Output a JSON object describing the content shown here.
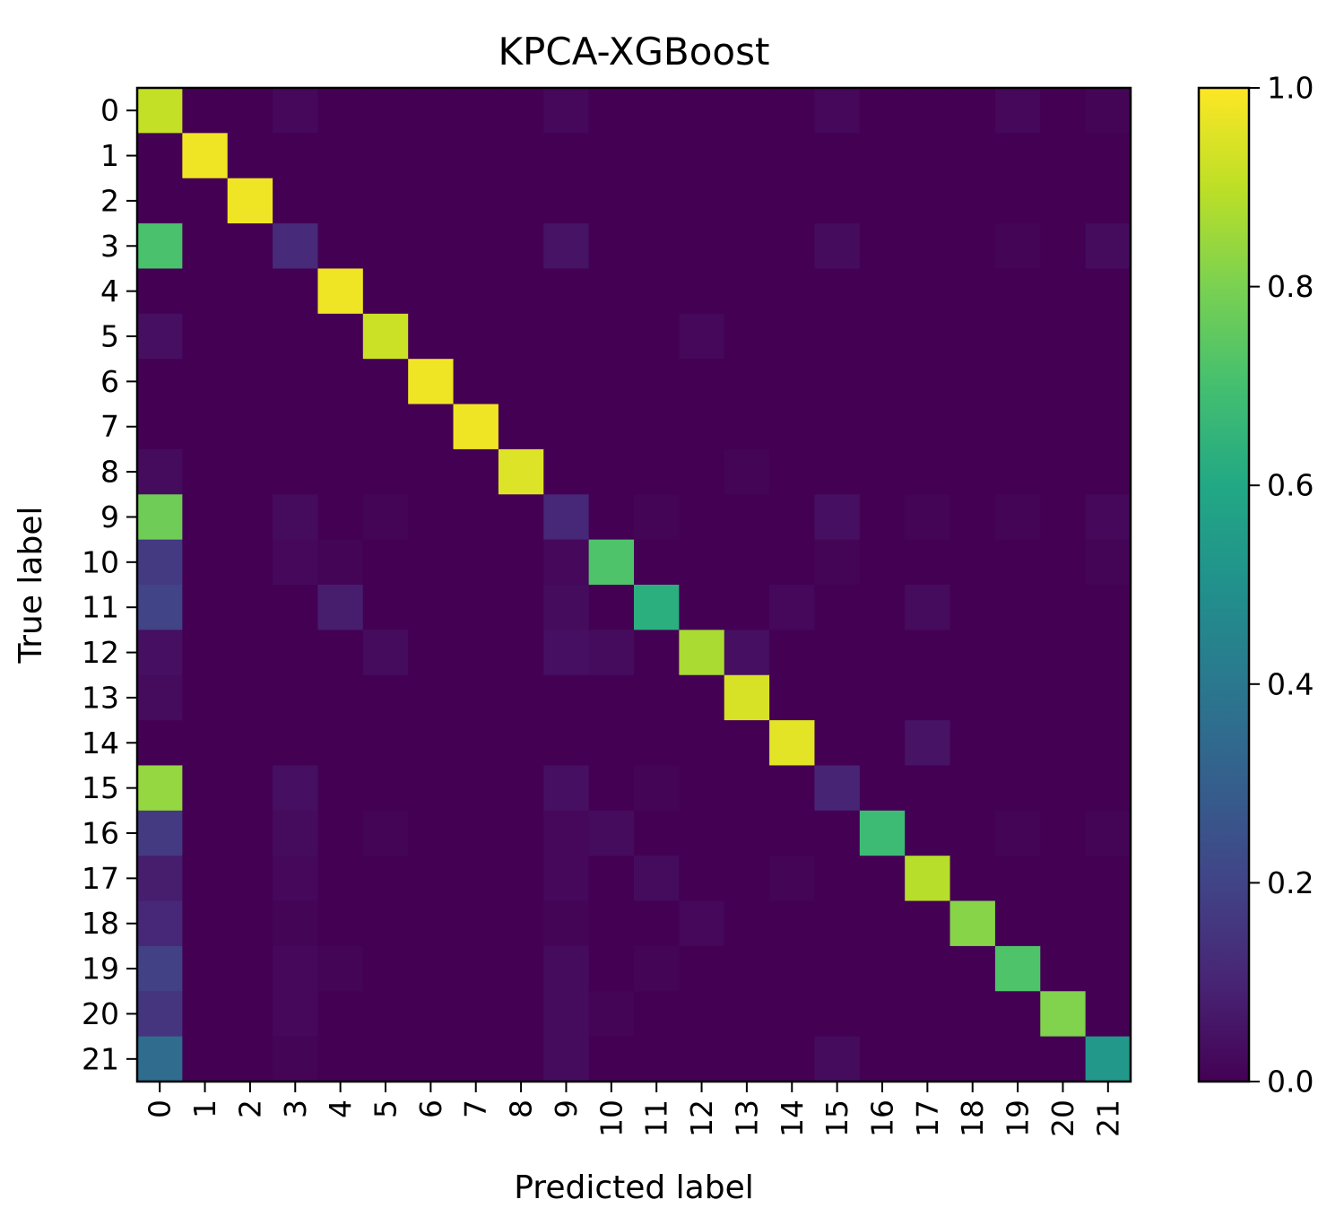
{
  "chart_data": {
    "type": "heatmap",
    "title": "KPCA-XGBoost",
    "xlabel": "Predicted label",
    "ylabel": "True label",
    "x_categories": [
      "0",
      "1",
      "2",
      "3",
      "4",
      "5",
      "6",
      "7",
      "8",
      "9",
      "10",
      "11",
      "12",
      "13",
      "14",
      "15",
      "16",
      "17",
      "18",
      "19",
      "20",
      "21"
    ],
    "y_categories": [
      "0",
      "1",
      "2",
      "3",
      "4",
      "5",
      "6",
      "7",
      "8",
      "9",
      "10",
      "11",
      "12",
      "13",
      "14",
      "15",
      "16",
      "17",
      "18",
      "19",
      "20",
      "21"
    ],
    "colormap": "viridis",
    "value_range": [
      0,
      1
    ],
    "colorbar_ticks": [
      "0.0",
      "0.2",
      "0.4",
      "0.6",
      "0.8",
      "1.0"
    ],
    "colorbar_tick_values": [
      0,
      0.2,
      0.4,
      0.6,
      0.8,
      1.0
    ],
    "matrix": [
      [
        0.91,
        0,
        0,
        0.02,
        0,
        0,
        0,
        0,
        0,
        0.02,
        0,
        0,
        0,
        0,
        0,
        0.02,
        0,
        0,
        0,
        0.02,
        0,
        0.01
      ],
      [
        0,
        0.98,
        0,
        0,
        0,
        0,
        0,
        0,
        0,
        0,
        0,
        0,
        0,
        0,
        0,
        0,
        0,
        0,
        0,
        0,
        0,
        0
      ],
      [
        0,
        0,
        0.98,
        0,
        0,
        0,
        0,
        0,
        0,
        0,
        0,
        0,
        0,
        0,
        0,
        0,
        0,
        0,
        0,
        0,
        0,
        0
      ],
      [
        0.71,
        0,
        0,
        0.12,
        0,
        0,
        0,
        0,
        0,
        0.05,
        0,
        0,
        0,
        0,
        0,
        0.03,
        0,
        0,
        0,
        0.01,
        0,
        0.03
      ],
      [
        0,
        0,
        0,
        0,
        0.98,
        0,
        0,
        0,
        0,
        0,
        0,
        0,
        0,
        0,
        0,
        0,
        0,
        0,
        0,
        0,
        0,
        0
      ],
      [
        0.04,
        0,
        0,
        0,
        0,
        0.92,
        0,
        0,
        0,
        0,
        0,
        0,
        0.02,
        0,
        0,
        0,
        0,
        0,
        0,
        0,
        0,
        0
      ],
      [
        0,
        0,
        0,
        0,
        0,
        0,
        0.98,
        0,
        0,
        0,
        0,
        0,
        0,
        0,
        0,
        0,
        0,
        0,
        0,
        0,
        0,
        0
      ],
      [
        0,
        0,
        0,
        0,
        0,
        0,
        0,
        0.98,
        0,
        0,
        0,
        0,
        0,
        0,
        0,
        0,
        0,
        0,
        0,
        0,
        0,
        0
      ],
      [
        0.03,
        0,
        0,
        0,
        0,
        0,
        0,
        0,
        0.95,
        0,
        0,
        0,
        0,
        0.01,
        0,
        0,
        0,
        0,
        0,
        0,
        0,
        0
      ],
      [
        0.78,
        0,
        0,
        0.03,
        0,
        0.01,
        0,
        0,
        0,
        0.11,
        0,
        0.01,
        0,
        0,
        0,
        0.04,
        0,
        0.01,
        0,
        0.01,
        0,
        0.02
      ],
      [
        0.17,
        0,
        0,
        0.02,
        0.01,
        0,
        0,
        0,
        0,
        0.02,
        0.72,
        0,
        0,
        0,
        0,
        0.01,
        0,
        0,
        0,
        0,
        0,
        0.01
      ],
      [
        0.2,
        0,
        0,
        0,
        0.08,
        0,
        0,
        0,
        0,
        0.03,
        0,
        0.63,
        0,
        0,
        0.02,
        0,
        0,
        0.03,
        0,
        0,
        0,
        0
      ],
      [
        0.04,
        0,
        0,
        0,
        0,
        0.03,
        0,
        0,
        0,
        0.04,
        0.03,
        0,
        0.87,
        0.04,
        0,
        0,
        0,
        0,
        0,
        0,
        0,
        0
      ],
      [
        0.03,
        0,
        0,
        0,
        0,
        0,
        0,
        0,
        0,
        0,
        0,
        0,
        0,
        0.94,
        0,
        0,
        0,
        0,
        0,
        0,
        0,
        0
      ],
      [
        0,
        0,
        0,
        0,
        0,
        0,
        0,
        0,
        0,
        0,
        0,
        0,
        0,
        0,
        0.96,
        0,
        0,
        0.05,
        0,
        0,
        0,
        0
      ],
      [
        0.84,
        0,
        0,
        0.04,
        0,
        0,
        0,
        0,
        0,
        0.04,
        0,
        0.01,
        0,
        0,
        0,
        0.1,
        0,
        0,
        0,
        0,
        0,
        0
      ],
      [
        0.17,
        0,
        0,
        0.03,
        0,
        0.01,
        0,
        0,
        0,
        0.02,
        0.03,
        0,
        0,
        0,
        0,
        0,
        0.68,
        0,
        0,
        0.01,
        0,
        0.01
      ],
      [
        0.08,
        0,
        0,
        0.02,
        0,
        0,
        0,
        0,
        0,
        0.02,
        0,
        0.03,
        0,
        0,
        0.01,
        0,
        0,
        0.89,
        0,
        0,
        0,
        0
      ],
      [
        0.11,
        0,
        0,
        0.01,
        0,
        0,
        0,
        0,
        0,
        0.01,
        0,
        0,
        0.02,
        0,
        0,
        0,
        0,
        0,
        0.82,
        0,
        0,
        0
      ],
      [
        0.19,
        0,
        0,
        0.02,
        0.01,
        0,
        0,
        0,
        0,
        0.03,
        0,
        0.01,
        0,
        0,
        0,
        0,
        0,
        0,
        0,
        0.72,
        0,
        0
      ],
      [
        0.15,
        0,
        0,
        0.02,
        0,
        0,
        0,
        0,
        0,
        0.03,
        0.01,
        0,
        0,
        0,
        0,
        0,
        0,
        0,
        0,
        0,
        0.81,
        0
      ],
      [
        0.35,
        0,
        0,
        0.01,
        0,
        0,
        0,
        0,
        0,
        0.03,
        0,
        0,
        0,
        0,
        0,
        0.03,
        0,
        0,
        0,
        0,
        0,
        0.53
      ]
    ]
  }
}
